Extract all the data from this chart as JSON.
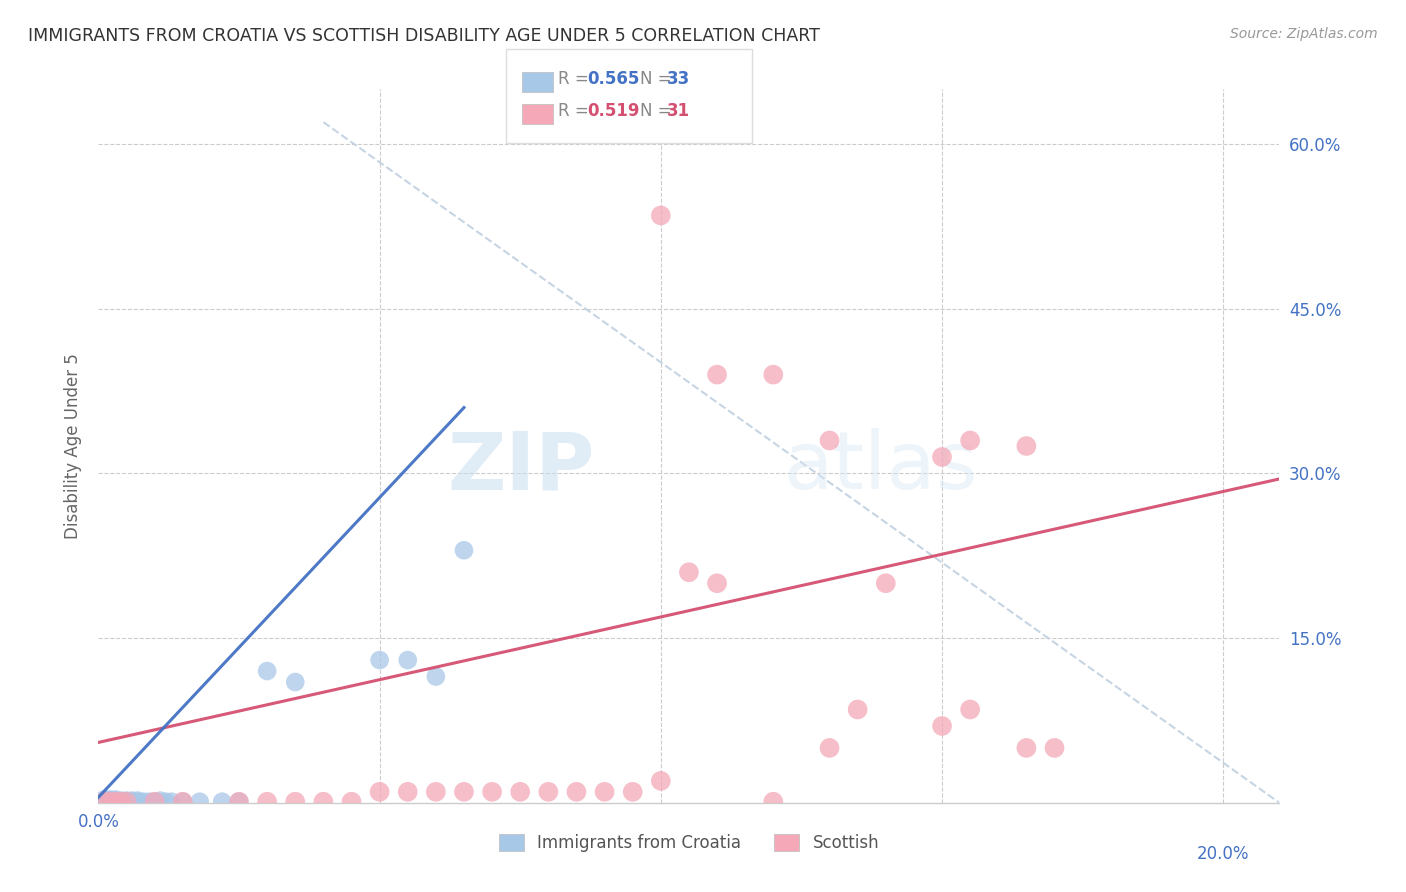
{
  "title": "IMMIGRANTS FROM CROATIA VS SCOTTISH DISABILITY AGE UNDER 5 CORRELATION CHART",
  "source": "Source: ZipAtlas.com",
  "ylabel": "Disability Age Under 5",
  "legend_blue_label": "Immigrants from Croatia",
  "legend_pink_label": "Scottish",
  "r_blue": "0.565",
  "n_blue": "33",
  "r_pink": "0.519",
  "n_pink": "31",
  "xlim": [
    0.0,
    0.21
  ],
  "ylim": [
    0.0,
    0.65
  ],
  "blue_color": "#a8c8e8",
  "blue_line_color": "#4472c4",
  "pink_color": "#f4a8b8",
  "pink_line_color": "#d45070",
  "dashed_line_color": "#c0d0e0",
  "watermark_zip": "ZIP",
  "watermark_atlas": "atlas",
  "blue_scatter": [
    [
      0.001,
      0.001
    ],
    [
      0.001,
      0.002
    ],
    [
      0.001,
      0.003
    ],
    [
      0.002,
      0.001
    ],
    [
      0.002,
      0.002
    ],
    [
      0.002,
      0.003
    ],
    [
      0.003,
      0.001
    ],
    [
      0.003,
      0.002
    ],
    [
      0.003,
      0.003
    ],
    [
      0.004,
      0.001
    ],
    [
      0.004,
      0.002
    ],
    [
      0.005,
      0.001
    ],
    [
      0.005,
      0.002
    ],
    [
      0.006,
      0.001
    ],
    [
      0.006,
      0.002
    ],
    [
      0.007,
      0.001
    ],
    [
      0.007,
      0.002
    ],
    [
      0.008,
      0.001
    ],
    [
      0.009,
      0.001
    ],
    [
      0.01,
      0.001
    ],
    [
      0.011,
      0.002
    ],
    [
      0.012,
      0.001
    ],
    [
      0.013,
      0.001
    ],
    [
      0.015,
      0.001
    ],
    [
      0.018,
      0.001
    ],
    [
      0.022,
      0.001
    ],
    [
      0.025,
      0.001
    ],
    [
      0.03,
      0.12
    ],
    [
      0.035,
      0.11
    ],
    [
      0.05,
      0.13
    ],
    [
      0.055,
      0.13
    ],
    [
      0.06,
      0.115
    ],
    [
      0.065,
      0.23
    ]
  ],
  "pink_scatter": [
    [
      0.001,
      0.001
    ],
    [
      0.002,
      0.001
    ],
    [
      0.003,
      0.001
    ],
    [
      0.004,
      0.001
    ],
    [
      0.005,
      0.001
    ],
    [
      0.01,
      0.001
    ],
    [
      0.015,
      0.001
    ],
    [
      0.025,
      0.001
    ],
    [
      0.03,
      0.001
    ],
    [
      0.035,
      0.001
    ],
    [
      0.04,
      0.001
    ],
    [
      0.045,
      0.001
    ],
    [
      0.05,
      0.01
    ],
    [
      0.055,
      0.01
    ],
    [
      0.06,
      0.01
    ],
    [
      0.065,
      0.01
    ],
    [
      0.07,
      0.01
    ],
    [
      0.075,
      0.01
    ],
    [
      0.08,
      0.01
    ],
    [
      0.085,
      0.01
    ],
    [
      0.09,
      0.01
    ],
    [
      0.095,
      0.01
    ],
    [
      0.1,
      0.02
    ],
    [
      0.105,
      0.21
    ],
    [
      0.11,
      0.2
    ],
    [
      0.12,
      0.001
    ],
    [
      0.13,
      0.05
    ],
    [
      0.135,
      0.085
    ],
    [
      0.15,
      0.07
    ],
    [
      0.155,
      0.085
    ],
    [
      0.165,
      0.05
    ],
    [
      0.17,
      0.05
    ]
  ],
  "pink_high_points": [
    [
      0.1,
      0.535
    ],
    [
      0.11,
      0.39
    ],
    [
      0.12,
      0.39
    ],
    [
      0.13,
      0.33
    ],
    [
      0.15,
      0.315
    ],
    [
      0.165,
      0.325
    ],
    [
      0.155,
      0.33
    ],
    [
      0.14,
      0.2
    ]
  ],
  "blue_line_x": [
    0.0,
    0.065
  ],
  "blue_line_y": [
    0.005,
    0.36
  ],
  "dashed_line_x": [
    0.04,
    0.21
  ],
  "dashed_line_y": [
    0.62,
    0.0
  ],
  "pink_line_x": [
    0.0,
    0.21
  ],
  "pink_line_y": [
    0.055,
    0.295
  ]
}
